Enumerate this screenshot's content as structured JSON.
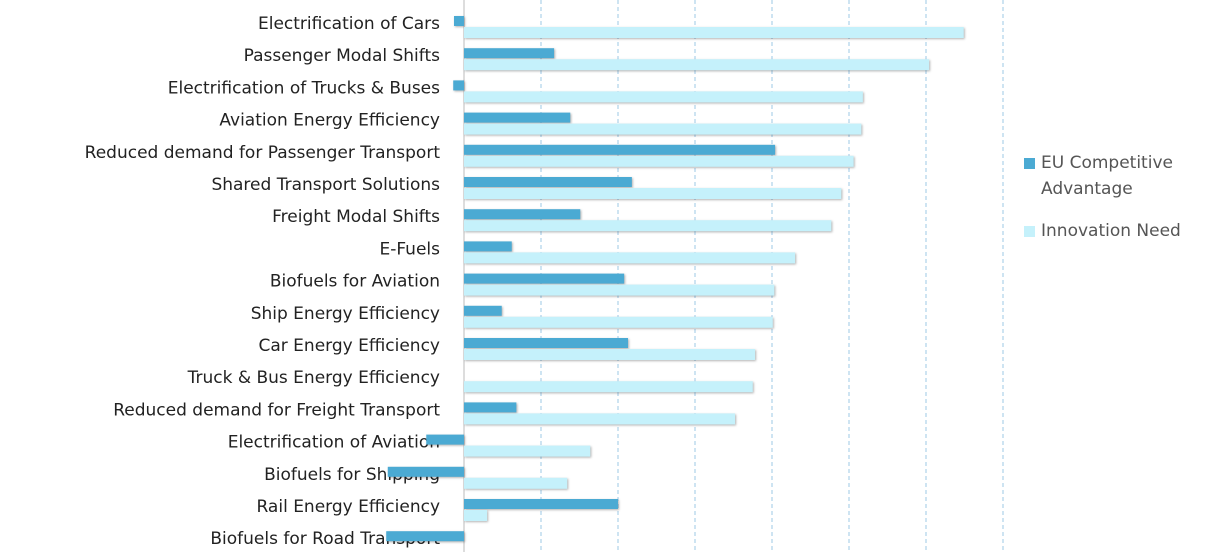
{
  "chart_data": {
    "type": "bar",
    "orientation": "horizontal",
    "categories": [
      "Electrification of Cars",
      "Passenger Modal Shifts",
      "Electrification of Trucks & Buses",
      "Aviation Energy Efficiency",
      "Reduced demand for Passenger Transport",
      "Shared Transport Solutions",
      "Freight Modal Shifts",
      "E-Fuels",
      "Biofuels for Aviation",
      "Ship Energy Efficiency",
      "Car Energy Efficiency",
      "Truck & Bus Energy Efficiency",
      "Reduced demand for Freight Transport",
      "Electrification of Aviation",
      "Biofuels for Shipping",
      "Rail Energy Efficiency",
      "Biofuels for Road Transport"
    ],
    "series": [
      {
        "name": "EU Competitive Advantage",
        "color": "#4baad3",
        "values": [
          -0.13,
          1.17,
          -0.14,
          1.38,
          4.04,
          2.18,
          1.51,
          0.62,
          2.08,
          0.49,
          2.13,
          0,
          0.68,
          -0.49,
          -0.99,
          2.0,
          -1.01
        ]
      },
      {
        "name": "Innovation Need",
        "color": "#c5f1fb",
        "values": [
          6.49,
          6.04,
          5.18,
          5.16,
          5.06,
          4.9,
          4.77,
          4.3,
          4.03,
          4.01,
          3.78,
          3.75,
          3.52,
          1.64,
          1.34,
          0.3,
          0
        ]
      }
    ],
    "xlim": [
      -1,
      7
    ],
    "xticks": [
      0,
      1,
      2,
      3,
      4,
      5,
      6,
      7
    ],
    "grid": true,
    "legend": "right"
  }
}
